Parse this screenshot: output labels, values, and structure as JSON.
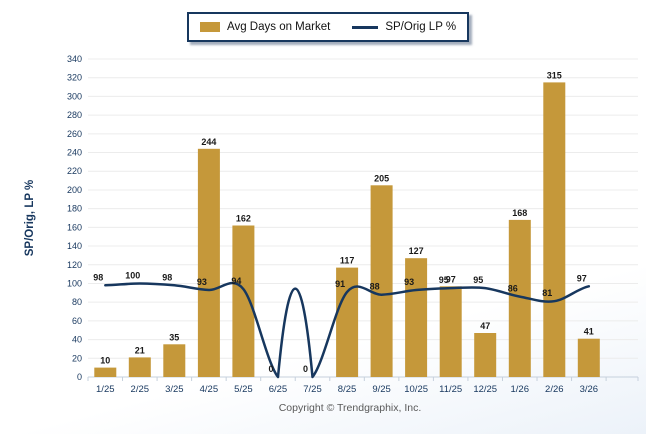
{
  "legend": {
    "bar_label": "Avg Days on Market",
    "line_label": "SP/Orig LP %"
  },
  "y_axis_title": "SP/Orig, LP %",
  "copyright": "Copyright © Trendgraphix, Inc.",
  "colors": {
    "bar": "#C5983A",
    "line": "#17375E",
    "grid": "#ececec",
    "axis": "#c6d0dc",
    "tick_text": "#17375E",
    "value_text": "#1a1a1a"
  },
  "chart_data": {
    "type": "bar",
    "subtype": "bar+line combo",
    "categories": [
      "1/25",
      "2/25",
      "3/25",
      "4/25",
      "5/25",
      "6/25",
      "7/25",
      "8/25",
      "9/25",
      "10/25",
      "11/25",
      "12/25",
      "1/26",
      "2/26",
      "3/26"
    ],
    "series": [
      {
        "name": "Avg Days on Market",
        "type": "bar",
        "values": [
          10,
          21,
          35,
          244,
          162,
          0,
          0,
          117,
          205,
          127,
          97,
          47,
          168,
          315,
          41
        ]
      },
      {
        "name": "SP/Orig LP %",
        "type": "line",
        "values": [
          98,
          100,
          98,
          93,
          94,
          0,
          0,
          91,
          88,
          93,
          95,
          95,
          86,
          81,
          97
        ]
      }
    ],
    "title": "",
    "xlabel": "",
    "ylabel": "SP/Orig, LP %",
    "ylim": [
      0,
      340
    ],
    "ytick_step": 20,
    "grid": true,
    "legend_position": "top-center"
  }
}
